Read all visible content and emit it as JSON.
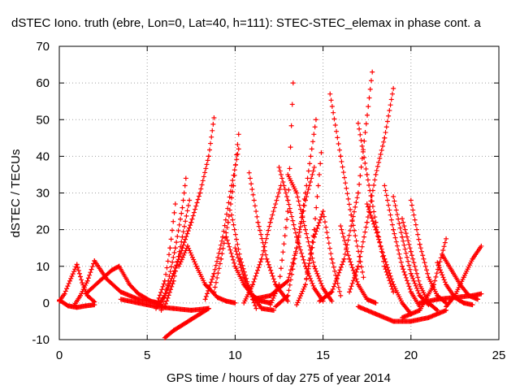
{
  "chart_data": {
    "type": "scatter",
    "title": "dSTEC Iono. truth (ebre, Lon=0, Lat=40, h=111): STEC-STEC_elemax in phase cont. a",
    "xlabel": "GPS time / hours of day 275 of year 2014",
    "ylabel": "dSTEC  / TECUs",
    "xlim": [
      0,
      25
    ],
    "ylim": [
      -10,
      70
    ],
    "xticks": [
      0,
      5,
      10,
      15,
      20,
      25
    ],
    "yticks": [
      -10,
      0,
      10,
      20,
      30,
      40,
      50,
      60,
      70
    ],
    "grid": true,
    "marker": "+",
    "color": "#ff0000",
    "arcs": [
      {
        "x": [
          0.0,
          0.3,
          0.6,
          1.0
        ],
        "y": [
          0.5,
          2.5,
          6.0,
          10.5
        ]
      },
      {
        "x": [
          1.0,
          1.3,
          1.6,
          2.0
        ],
        "y": [
          10.5,
          5.5,
          2.0,
          0.3
        ]
      },
      {
        "x": [
          0.0,
          0.5,
          1.0,
          1.5,
          2.0
        ],
        "y": [
          0.8,
          -0.8,
          -1.2,
          -0.8,
          -0.5
        ]
      },
      {
        "x": [
          0.8,
          1.2,
          1.6,
          2.0
        ],
        "y": [
          -1.0,
          2.0,
          6.0,
          11.5
        ]
      },
      {
        "x": [
          2.0,
          2.7,
          3.5,
          4.5,
          5.5
        ],
        "y": [
          11.5,
          6.5,
          3.0,
          1.0,
          0.2
        ]
      },
      {
        "x": [
          1.5,
          2.3,
          3.0,
          3.4
        ],
        "y": [
          2.5,
          6.0,
          9.0,
          10.0
        ]
      },
      {
        "x": [
          3.4,
          4.0,
          4.5,
          5.2,
          5.8
        ],
        "y": [
          10.0,
          5.0,
          2.5,
          0.5,
          -0.5
        ]
      },
      {
        "x": [
          3.5,
          4.5,
          5.5,
          6.5,
          7.5,
          8.5
        ],
        "y": [
          1.0,
          0.0,
          -1.0,
          -1.5,
          -2.0,
          -1.5
        ]
      },
      {
        "x": [
          5.5,
          6.0,
          6.5,
          7.0,
          7.5,
          8.0,
          8.5,
          8.8
        ],
        "y": [
          -1.5,
          2.0,
          8.0,
          15.0,
          22.0,
          30.0,
          40.0,
          50.5
        ]
      },
      {
        "x": [
          5.5,
          6.0,
          6.3,
          6.6
        ],
        "y": [
          -1.0,
          6.0,
          15.0,
          27.0
        ]
      },
      {
        "x": [
          5.8,
          6.2,
          6.6,
          7.0,
          7.2
        ],
        "y": [
          -2.0,
          6.0,
          15.0,
          26.0,
          34.0
        ]
      },
      {
        "x": [
          6.0,
          6.5,
          7.0,
          7.4
        ],
        "y": [
          -1.0,
          6.0,
          18.0,
          28.0
        ]
      },
      {
        "x": [
          6.0,
          6.5,
          7.0,
          7.5,
          8.0,
          8.5
        ],
        "y": [
          -9.5,
          -7.5,
          -6.0,
          -4.5,
          -3.0,
          -1.5
        ]
      },
      {
        "x": [
          6.8,
          7.3,
          7.8,
          8.3,
          9.0,
          9.5,
          10.0
        ],
        "y": [
          10.0,
          15.5,
          10.0,
          5.0,
          1.5,
          0.5,
          0.0
        ]
      },
      {
        "x": [
          8.3,
          8.8,
          9.3,
          9.8,
          10.2
        ],
        "y": [
          1.0,
          8.0,
          18.0,
          32.0,
          42.0
        ]
      },
      {
        "x": [
          8.8,
          9.2,
          9.6,
          9.9,
          10.2
        ],
        "y": [
          3.0,
          12.0,
          22.0,
          32.0,
          46.0
        ]
      },
      {
        "x": [
          9.5,
          10.0,
          10.5,
          11.0,
          11.5,
          12.0
        ],
        "y": [
          18.0,
          10.0,
          5.0,
          2.0,
          0.5,
          0.0
        ]
      },
      {
        "x": [
          9.8,
          10.3,
          10.8,
          11.2
        ],
        "y": [
          24.0,
          12.0,
          4.0,
          -1.5
        ]
      },
      {
        "x": [
          10.0,
          10.5,
          11.0,
          11.5,
          12.2
        ],
        "y": [
          15.0,
          7.0,
          2.0,
          -1.5,
          -2.0
        ]
      },
      {
        "x": [
          10.5,
          11.0,
          11.5,
          12.0,
          12.6
        ],
        "y": [
          0.0,
          5.0,
          12.0,
          22.0,
          32.0
        ]
      },
      {
        "x": [
          10.8,
          11.3,
          11.8,
          12.3,
          13.0
        ],
        "y": [
          35.5,
          22.0,
          12.0,
          5.0,
          0.5
        ]
      },
      {
        "x": [
          11.0,
          12.0,
          13.0,
          13.5,
          14.0,
          14.5
        ],
        "y": [
          1.0,
          2.0,
          6.0,
          15.0,
          28.0,
          37.0
        ]
      },
      {
        "x": [
          12.0,
          12.5,
          13.0,
          13.3
        ],
        "y": [
          -0.5,
          5.0,
          25.0,
          60.0
        ]
      },
      {
        "x": [
          12.5,
          13.0,
          13.5,
          14.0,
          14.5,
          15.0
        ],
        "y": [
          37.0,
          28.0,
          18.0,
          10.0,
          4.0,
          0.5
        ]
      },
      {
        "x": [
          12.3,
          13.0,
          13.5,
          14.0,
          14.6
        ],
        "y": [
          -1.0,
          2.0,
          15.0,
          30.0,
          50.0
        ]
      },
      {
        "x": [
          13.0,
          13.5,
          14.0,
          14.5,
          15.0,
          15.5
        ],
        "y": [
          35.0,
          30.0,
          20.0,
          10.0,
          4.0,
          0.5
        ]
      },
      {
        "x": [
          13.5,
          14.0,
          14.5,
          14.9
        ],
        "y": [
          -0.5,
          5.0,
          20.0,
          41.0
        ]
      },
      {
        "x": [
          14.0,
          14.5,
          15.0,
          15.5,
          16.0
        ],
        "y": [
          5.0,
          18.0,
          25.0,
          12.0,
          2.0
        ]
      },
      {
        "x": [
          14.8,
          15.5,
          16.2,
          17.0,
          17.8
        ],
        "y": [
          0.5,
          3.0,
          12.0,
          30.0,
          63.0
        ]
      },
      {
        "x": [
          15.4,
          16.0,
          16.6,
          17.3
        ],
        "y": [
          57.0,
          40.0,
          24.0,
          7.0
        ]
      },
      {
        "x": [
          16.0,
          16.5,
          17.0,
          17.5,
          18.0
        ],
        "y": [
          21.0,
          12.0,
          5.0,
          1.0,
          0.0
        ]
      },
      {
        "x": [
          16.5,
          17.0,
          17.5,
          18.0,
          18.5,
          19.0
        ],
        "y": [
          3.0,
          10.0,
          22.0,
          35.0,
          45.0,
          58.5
        ]
      },
      {
        "x": [
          17.0,
          17.5,
          18.0,
          18.5,
          19.0
        ],
        "y": [
          49.0,
          35.0,
          22.0,
          10.0,
          3.0
        ]
      },
      {
        "x": [
          17.5,
          18.0,
          18.5,
          19.0,
          19.5,
          20.0
        ],
        "y": [
          27.0,
          20.0,
          12.0,
          5.0,
          0.0,
          -3.0
        ]
      },
      {
        "x": [
          18.5,
          19.0,
          19.5,
          20.0,
          20.5
        ],
        "y": [
          32.0,
          20.0,
          10.0,
          3.0,
          -1.0
        ]
      },
      {
        "x": [
          19.0,
          19.5,
          20.0,
          20.5,
          21.0
        ],
        "y": [
          29.0,
          18.0,
          8.0,
          2.0,
          -0.5
        ]
      },
      {
        "x": [
          19.5,
          20.0,
          20.5,
          21.0,
          21.5
        ],
        "y": [
          23.0,
          14.0,
          5.0,
          0.0,
          -2.0
        ]
      },
      {
        "x": [
          17.0,
          18.0,
          19.0,
          20.0,
          21.0,
          22.0
        ],
        "y": [
          -1.0,
          -3.0,
          -5.0,
          -5.0,
          -4.0,
          -2.0
        ]
      },
      {
        "x": [
          20.0,
          20.5,
          21.0,
          21.5,
          22.0
        ],
        "y": [
          28.0,
          16.0,
          7.0,
          2.0,
          0.0
        ]
      },
      {
        "x": [
          19.5,
          20.5,
          21.3,
          22.0
        ],
        "y": [
          -4.0,
          -2.0,
          5.0,
          17.5
        ]
      },
      {
        "x": [
          21.5,
          22.0,
          22.5,
          23.0,
          23.5
        ],
        "y": [
          11.0,
          5.0,
          1.5,
          0.0,
          -0.5
        ]
      },
      {
        "x": [
          22.0,
          22.5,
          23.0,
          23.5,
          24.0
        ],
        "y": [
          -1.0,
          2.0,
          7.0,
          12.0,
          15.5
        ]
      },
      {
        "x": [
          21.8,
          22.3,
          22.8,
          23.3,
          23.8
        ],
        "y": [
          13.0,
          9.0,
          5.0,
          2.0,
          1.0
        ]
      },
      {
        "x": [
          20.5,
          21.5,
          22.5,
          23.5,
          24.0
        ],
        "y": [
          0.0,
          1.0,
          1.5,
          2.0,
          2.5
        ]
      }
    ]
  }
}
